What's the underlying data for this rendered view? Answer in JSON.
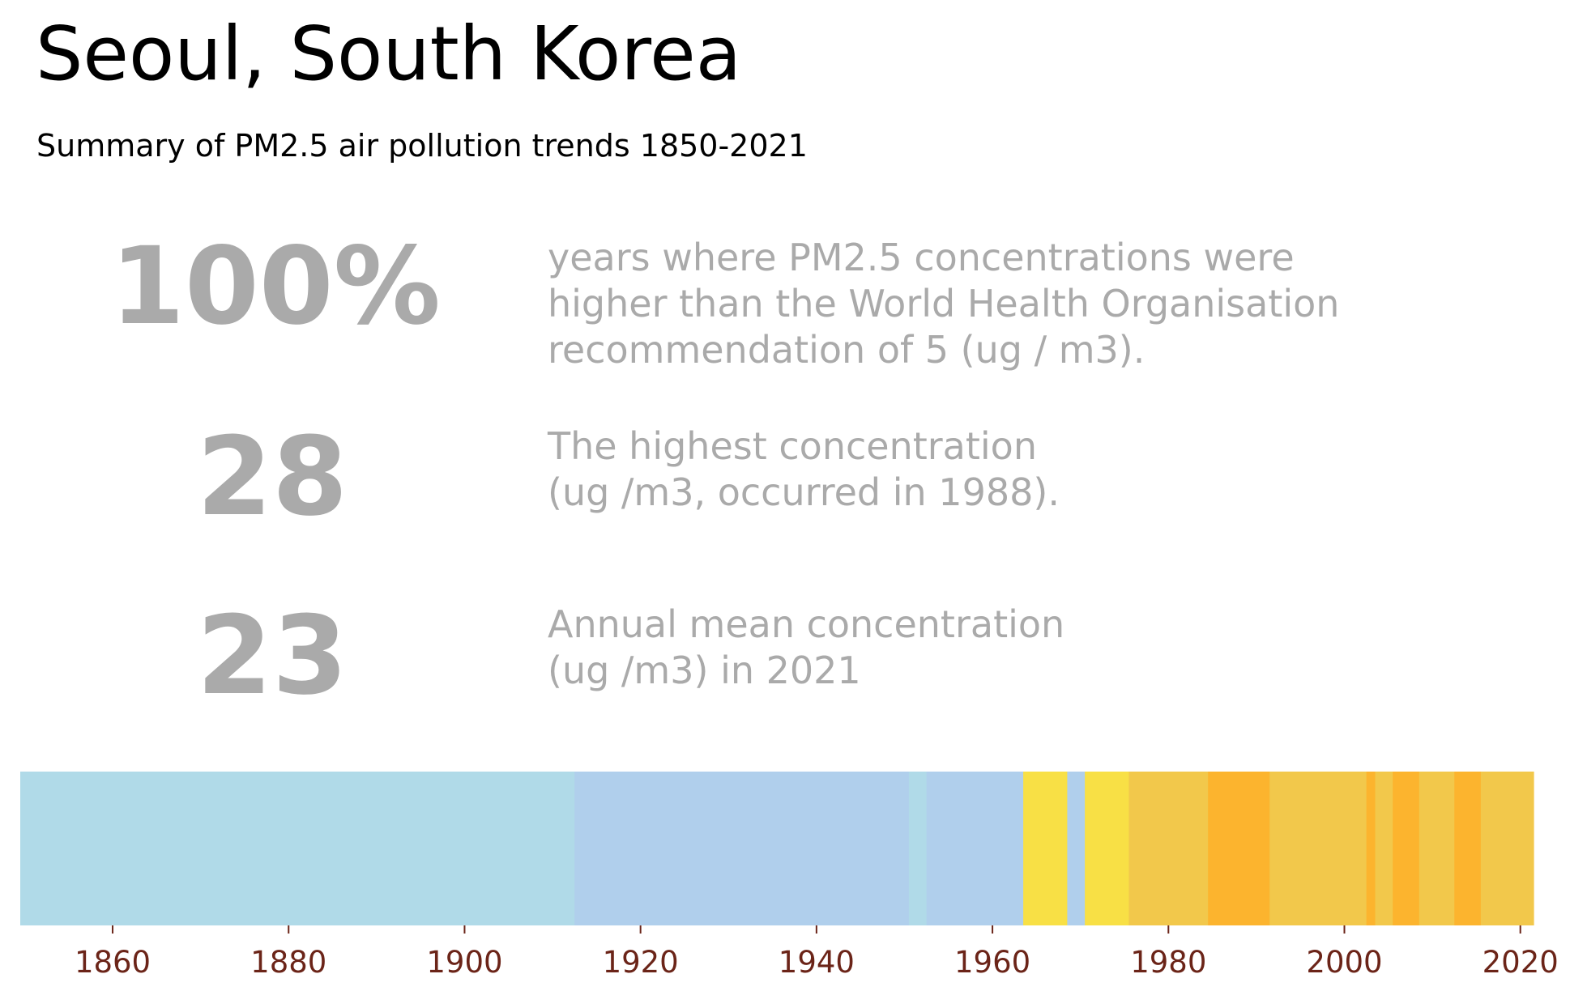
{
  "header": {
    "title": "Seoul, South Korea",
    "subtitle": "Summary of PM2.5 air pollution trends 1850-2021"
  },
  "stats": [
    {
      "value": "100%",
      "desc": [
        "years where PM2.5 concentrations were",
        "higher than the World Health Organisation",
        "recommendation of 5 (ug / m3)."
      ]
    },
    {
      "value": "28",
      "desc": [
        "The highest concentration",
        "(ug /m3, occurred in 1988)."
      ]
    },
    {
      "value": "23",
      "desc": [
        "Annual mean concentration",
        "(ug /m3) in 2021"
      ]
    }
  ],
  "colors": {
    "text_gray": "#aaaaaa",
    "tick_label": "#6b2418",
    "band_light_blue": "#b0dae8",
    "band_blue": "#b0cfec",
    "band_yellow": "#f8e045",
    "band_gold": "#f2c84b",
    "band_orange": "#fcb42e"
  },
  "chart_data": {
    "type": "heatmap",
    "title": "",
    "xlabel": "",
    "ylabel": "",
    "xlim": [
      1849.5,
      2021.5
    ],
    "x_ticks": [
      1860,
      1880,
      1900,
      1920,
      1940,
      1960,
      1980,
      2000,
      2020
    ],
    "grid": false,
    "legend": "none",
    "segments": [
      {
        "start": 1850,
        "end": 1912,
        "color": "#b0dae8"
      },
      {
        "start": 1913,
        "end": 1950,
        "color": "#b0cfec"
      },
      {
        "start": 1951,
        "end": 1952,
        "color": "#b0dae8"
      },
      {
        "start": 1953,
        "end": 1963,
        "color": "#b0cfec"
      },
      {
        "start": 1964,
        "end": 1968,
        "color": "#f8e045"
      },
      {
        "start": 1969,
        "end": 1970,
        "color": "#b0cfec"
      },
      {
        "start": 1971,
        "end": 1975,
        "color": "#f8e045"
      },
      {
        "start": 1976,
        "end": 1984,
        "color": "#f2c84b"
      },
      {
        "start": 1985,
        "end": 1991,
        "color": "#fcb42e"
      },
      {
        "start": 1992,
        "end": 2002,
        "color": "#f2c84b"
      },
      {
        "start": 2003,
        "end": 2003,
        "color": "#fcb42e"
      },
      {
        "start": 2004,
        "end": 2005,
        "color": "#f2c84b"
      },
      {
        "start": 2006,
        "end": 2008,
        "color": "#fcb42e"
      },
      {
        "start": 2009,
        "end": 2012,
        "color": "#f2c84b"
      },
      {
        "start": 2013,
        "end": 2015,
        "color": "#fcb42e"
      },
      {
        "start": 2016,
        "end": 2021,
        "color": "#f2c84b"
      }
    ]
  }
}
